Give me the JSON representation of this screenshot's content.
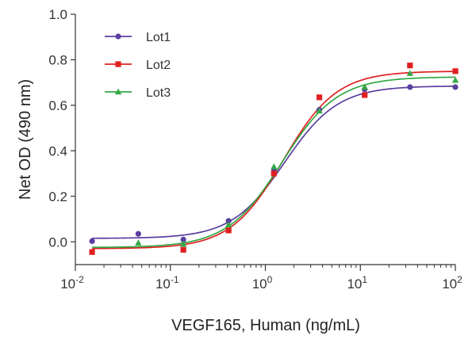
{
  "chart_data": {
    "type": "scatter",
    "x_scale": "log",
    "xlabel": "VEGF165, Human (ng/mL)",
    "ylabel": "Net OD (490 nm)",
    "xlim": [
      0.01,
      100
    ],
    "ylim": [
      -0.1,
      1.0
    ],
    "x_ticks": [
      {
        "value": 0.01,
        "base": "10",
        "exp": "-2"
      },
      {
        "value": 0.1,
        "base": "10",
        "exp": "-1"
      },
      {
        "value": 1,
        "base": "10",
        "exp": "0"
      },
      {
        "value": 10,
        "base": "10",
        "exp": "1"
      },
      {
        "value": 100,
        "base": "10",
        "exp": "2"
      }
    ],
    "y_ticks": [
      "0.0",
      "0.2",
      "0.4",
      "0.6",
      "0.8",
      "1.0"
    ],
    "legend_position": "top-left",
    "series": [
      {
        "name": "Lot1",
        "color": "#5b3fa0",
        "marker": "circle",
        "x": [
          0.015,
          0.046,
          0.137,
          0.41,
          1.23,
          3.7,
          11.1,
          33.3,
          100
        ],
        "y": [
          0.003,
          0.035,
          0.01,
          0.092,
          0.31,
          0.58,
          0.67,
          0.68,
          0.68
        ]
      },
      {
        "name": "Lot2",
        "color": "#e02020",
        "marker": "square",
        "x": [
          0.015,
          0.046,
          0.137,
          0.41,
          1.23,
          3.7,
          11.1,
          33.3,
          100
        ],
        "y": [
          -0.045,
          null,
          -0.035,
          0.05,
          0.3,
          0.635,
          0.645,
          0.775,
          0.75
        ]
      },
      {
        "name": "Lot3",
        "color": "#33a845",
        "marker": "triangle",
        "x": [
          0.046,
          0.137,
          0.41,
          1.23,
          3.7,
          11.1,
          33.3,
          100
        ],
        "y": [
          -0.005,
          -0.01,
          0.075,
          0.33,
          0.575,
          0.68,
          0.74,
          0.71
        ]
      }
    ],
    "fits": [
      {
        "series": "Lot1",
        "bottom": 0.015,
        "top": 0.685,
        "ec50": 1.6,
        "hill": 1.55
      },
      {
        "series": "Lot2",
        "bottom": -0.03,
        "top": 0.75,
        "ec50": 1.55,
        "hill": 1.55
      },
      {
        "series": "Lot3",
        "bottom": -0.025,
        "top": 0.725,
        "ec50": 1.5,
        "hill": 1.5
      }
    ]
  }
}
